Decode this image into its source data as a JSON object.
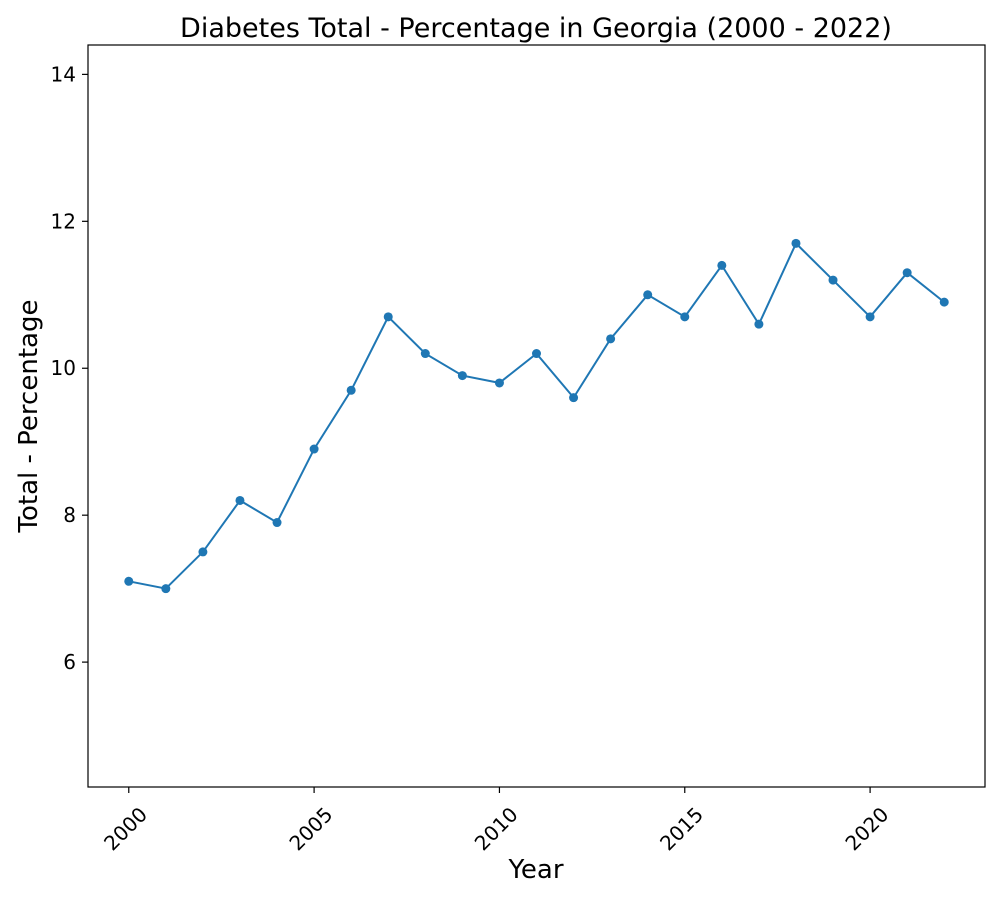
{
  "chart_data": {
    "type": "line",
    "title": "Diabetes Total - Percentage in Georgia (2000 - 2022)",
    "xlabel": "Year",
    "ylabel": "Total - Percentage",
    "xlim": [
      1998.9,
      2023.1
    ],
    "ylim": [
      4.3,
      14.4
    ],
    "x_ticks": [
      2000,
      2005,
      2010,
      2015,
      2020
    ],
    "y_ticks": [
      6,
      8,
      10,
      12,
      14
    ],
    "grid": false,
    "color": "#1f77b4",
    "marker": "circle",
    "series": [
      {
        "x": [
          2000,
          2001,
          2002,
          2003,
          2004,
          2005,
          2006,
          2007,
          2008,
          2009,
          2010,
          2011,
          2012,
          2013,
          2014,
          2015,
          2016,
          2017,
          2018,
          2019,
          2020,
          2021,
          2022
        ],
        "values": [
          7.1,
          7.0,
          7.5,
          8.2,
          7.9,
          8.9,
          9.7,
          10.7,
          10.2,
          9.9,
          9.8,
          10.2,
          9.6,
          10.4,
          11.0,
          10.7,
          11.4,
          10.6,
          11.7,
          11.2,
          10.7,
          11.3,
          10.9
        ]
      }
    ]
  }
}
